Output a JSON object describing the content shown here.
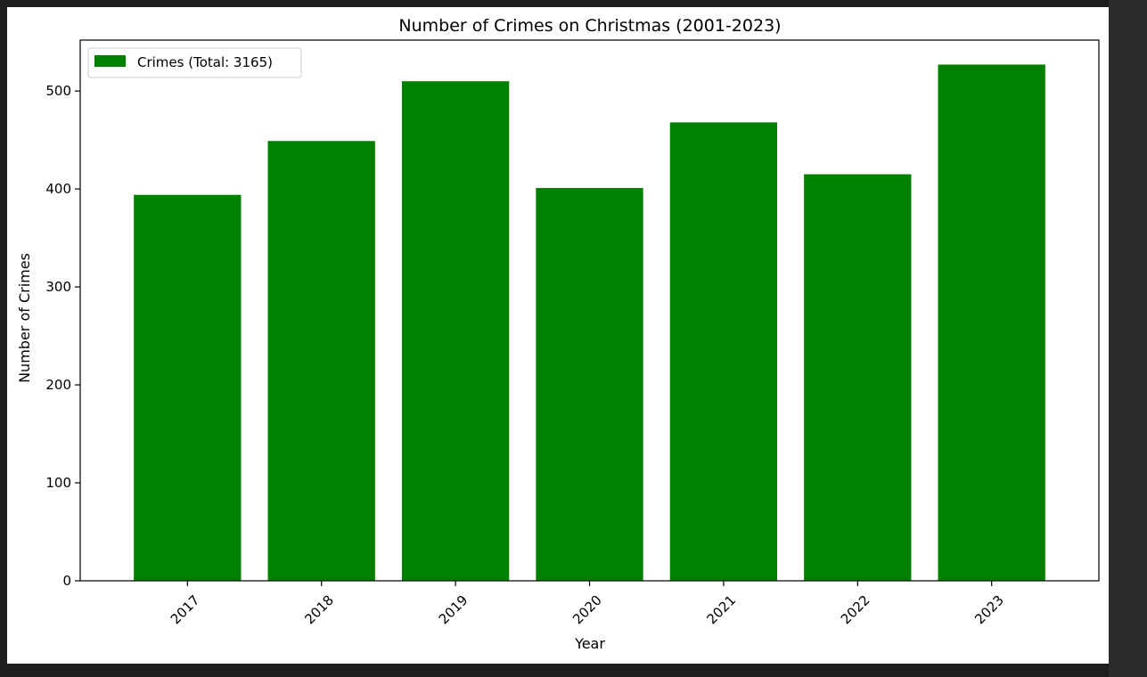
{
  "chart_data": {
    "type": "bar",
    "title": "Number of Crimes on Christmas (2001-2023)",
    "xlabel": "Year",
    "ylabel": "Number of Crimes",
    "categories": [
      "2017",
      "2018",
      "2019",
      "2020",
      "2021",
      "2022",
      "2023"
    ],
    "series": [
      {
        "name": "Crimes (Total: 3165)",
        "values": [
          394,
          449,
          510,
          401,
          468,
          415,
          527
        ],
        "color": "#008000"
      }
    ],
    "ylim": [
      0,
      552
    ],
    "yticks": [
      0,
      100,
      200,
      300,
      400,
      500
    ],
    "xtick_rotation": 45,
    "grid": false,
    "legend_position": "top-left"
  }
}
